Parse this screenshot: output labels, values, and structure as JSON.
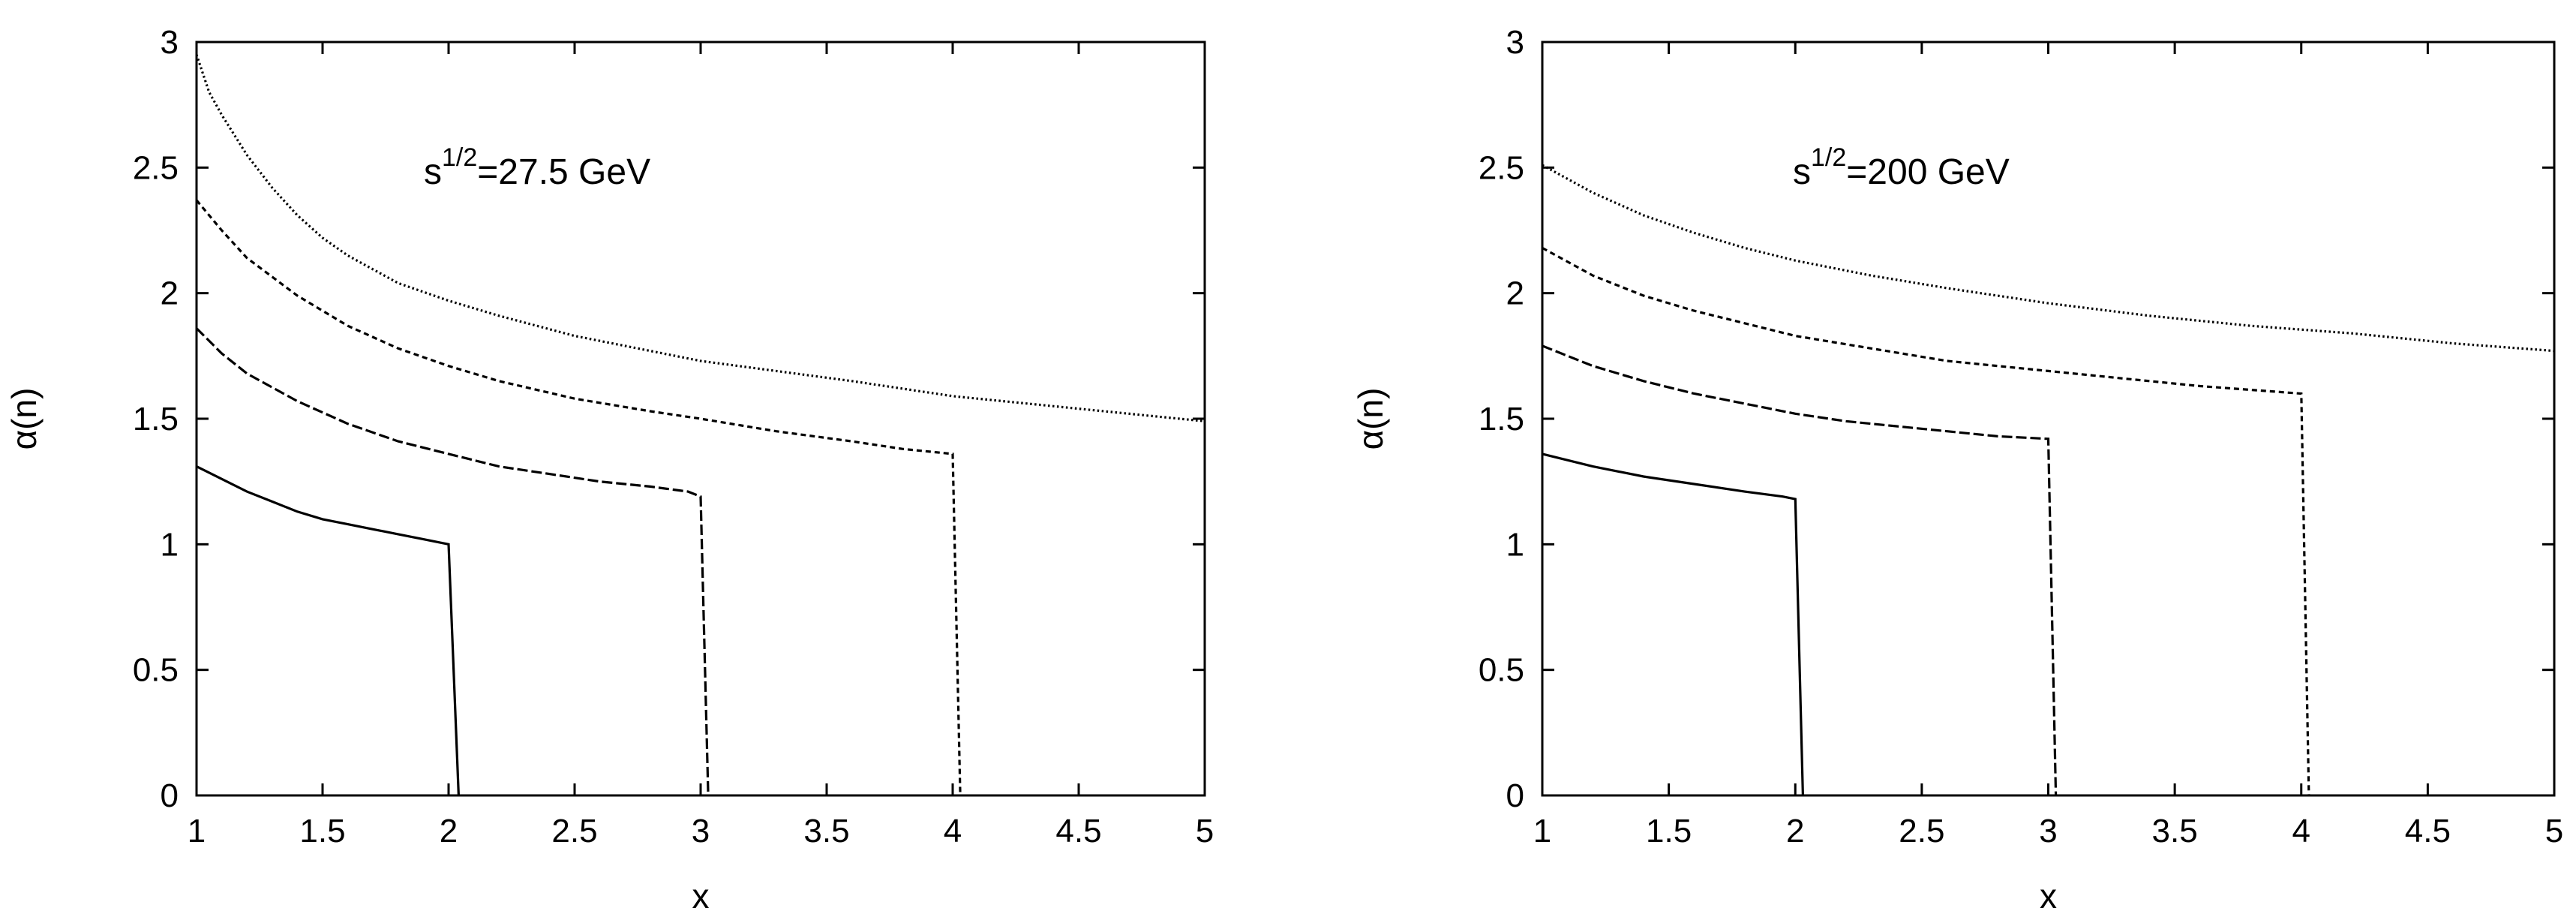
{
  "chart_data": [
    {
      "type": "line",
      "annotation": {
        "base": "s",
        "superscript": "1/2",
        "rest": "=27.5 GeV"
      },
      "xlabel": "x",
      "ylabel": "α(n)",
      "xlim": [
        1,
        5
      ],
      "ylim": [
        0,
        3
      ],
      "xticks": [
        "1",
        "1.5",
        "2",
        "2.5",
        "3",
        "3.5",
        "4",
        "4.5",
        "5"
      ],
      "yticks": [
        "0",
        "0.5",
        "1",
        "1.5",
        "2",
        "2.5",
        "3"
      ],
      "series": [
        {
          "style": "solid",
          "x": [
            1.0,
            1.1,
            1.2,
            1.3,
            1.4,
            1.5,
            1.6,
            1.7,
            1.8,
            1.9,
            2.0,
            2.04
          ],
          "y": [
            1.31,
            1.26,
            1.21,
            1.17,
            1.13,
            1.1,
            1.08,
            1.06,
            1.04,
            1.02,
            1.0,
            0.0
          ]
        },
        {
          "style": "dashed",
          "x": [
            1.0,
            1.1,
            1.2,
            1.4,
            1.6,
            1.8,
            2.0,
            2.2,
            2.4,
            2.6,
            2.8,
            2.95,
            3.0,
            3.03
          ],
          "y": [
            1.86,
            1.76,
            1.68,
            1.57,
            1.48,
            1.41,
            1.36,
            1.31,
            1.28,
            1.25,
            1.23,
            1.21,
            1.19,
            0.0
          ]
        },
        {
          "style": "short-dashed",
          "x": [
            1.0,
            1.1,
            1.2,
            1.4,
            1.6,
            1.8,
            2.0,
            2.2,
            2.5,
            2.8,
            3.0,
            3.3,
            3.6,
            3.8,
            4.0,
            4.03
          ],
          "y": [
            2.37,
            2.25,
            2.14,
            1.99,
            1.87,
            1.78,
            1.71,
            1.65,
            1.58,
            1.53,
            1.5,
            1.45,
            1.41,
            1.38,
            1.36,
            0.0
          ]
        },
        {
          "style": "dotted",
          "x": [
            1.0,
            1.05,
            1.1,
            1.2,
            1.3,
            1.4,
            1.5,
            1.6,
            1.8,
            2.0,
            2.2,
            2.5,
            2.8,
            3.0,
            3.3,
            3.6,
            4.0,
            4.4,
            4.8,
            5.0
          ],
          "y": [
            2.95,
            2.8,
            2.71,
            2.55,
            2.42,
            2.31,
            2.22,
            2.15,
            2.04,
            1.97,
            1.91,
            1.83,
            1.77,
            1.73,
            1.69,
            1.65,
            1.59,
            1.55,
            1.51,
            1.49
          ]
        }
      ]
    },
    {
      "type": "line",
      "annotation": {
        "base": "s",
        "superscript": "1/2",
        "rest": "=200 GeV"
      },
      "xlabel": "x",
      "ylabel": "α(n)",
      "xlim": [
        1,
        5
      ],
      "ylim": [
        0,
        3
      ],
      "xticks": [
        "1",
        "1.5",
        "2",
        "2.5",
        "3",
        "3.5",
        "4",
        "4.5",
        "5"
      ],
      "yticks": [
        "0",
        "0.5",
        "1",
        "1.5",
        "2",
        "2.5",
        "3"
      ],
      "series": [
        {
          "style": "solid",
          "x": [
            1.0,
            1.2,
            1.4,
            1.6,
            1.8,
            1.95,
            2.0,
            2.03
          ],
          "y": [
            1.36,
            1.31,
            1.27,
            1.24,
            1.21,
            1.19,
            1.18,
            0.0
          ]
        },
        {
          "style": "dashed",
          "x": [
            1.0,
            1.2,
            1.4,
            1.6,
            1.8,
            2.0,
            2.2,
            2.4,
            2.6,
            2.8,
            3.0,
            3.03
          ],
          "y": [
            1.79,
            1.71,
            1.65,
            1.6,
            1.56,
            1.52,
            1.49,
            1.47,
            1.45,
            1.43,
            1.42,
            0.0
          ]
        },
        {
          "style": "short-dashed",
          "x": [
            1.0,
            1.2,
            1.4,
            1.6,
            1.8,
            2.0,
            2.3,
            2.6,
            3.0,
            3.3,
            3.6,
            4.0,
            4.03
          ],
          "y": [
            2.18,
            2.07,
            1.99,
            1.93,
            1.88,
            1.83,
            1.78,
            1.73,
            1.69,
            1.66,
            1.63,
            1.6,
            0.0
          ]
        },
        {
          "style": "dotted",
          "x": [
            1.0,
            1.2,
            1.4,
            1.6,
            1.8,
            2.0,
            2.3,
            2.6,
            3.0,
            3.4,
            3.8,
            4.2,
            4.6,
            5.0
          ],
          "y": [
            2.51,
            2.4,
            2.31,
            2.24,
            2.18,
            2.13,
            2.07,
            2.02,
            1.96,
            1.91,
            1.87,
            1.84,
            1.8,
            1.77
          ]
        }
      ]
    }
  ]
}
